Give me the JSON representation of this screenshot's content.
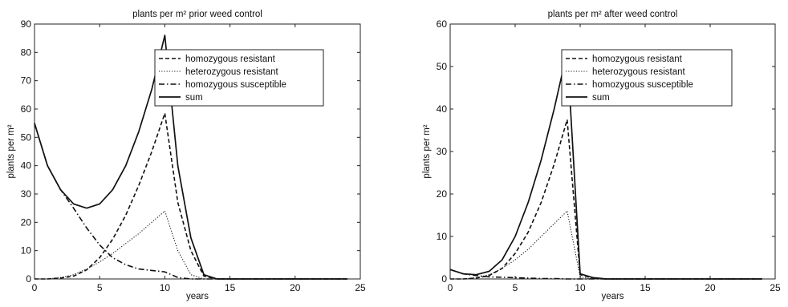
{
  "chart_data": [
    {
      "type": "line",
      "title": "plants per m² prior weed control",
      "xlabel": "years",
      "ylabel": "plants per m²",
      "xlim": [
        0,
        25
      ],
      "ylim": [
        0,
        90
      ],
      "xticks": [
        0,
        5,
        10,
        15,
        20,
        25
      ],
      "yticks": [
        0,
        10,
        20,
        30,
        40,
        50,
        60,
        70,
        80,
        90
      ],
      "grid": false,
      "legend_position": "top-right",
      "series": [
        {
          "name": "homozygous resistant",
          "style": "dashed",
          "x": [
            0,
            1,
            2,
            3,
            4,
            5,
            6,
            7,
            8,
            9,
            10,
            11,
            12,
            13,
            14,
            15,
            16,
            17,
            18,
            19,
            20,
            21,
            22,
            23,
            24
          ],
          "y": [
            0,
            0,
            0.3,
            1,
            3.2,
            7.5,
            14,
            22.5,
            33,
            45,
            58.5,
            27,
            10,
            1,
            0,
            0,
            0,
            0,
            0,
            0,
            0,
            0,
            0,
            0,
            0
          ]
        },
        {
          "name": "heterozygous resistant",
          "style": "dotted",
          "x": [
            0,
            1,
            2,
            3,
            4,
            5,
            6,
            7,
            8,
            9,
            10,
            11,
            12,
            13,
            14,
            15,
            16,
            17,
            18,
            19,
            20,
            21,
            22,
            23,
            24
          ],
          "y": [
            0,
            0,
            0.5,
            1.5,
            3.5,
            6,
            9,
            12.5,
            16,
            20,
            24,
            10,
            1.5,
            0,
            0,
            0,
            0,
            0,
            0,
            0,
            0,
            0,
            0,
            0,
            0
          ]
        },
        {
          "name": "homozygous susceptible",
          "style": "dash-dot",
          "x": [
            0,
            1,
            2,
            3,
            4,
            5,
            6,
            7,
            8,
            9,
            10,
            11,
            12,
            13,
            14,
            15,
            16,
            17,
            18,
            19,
            20,
            21,
            22,
            23,
            24
          ],
          "y": [
            55,
            40,
            31.5,
            25,
            18,
            12,
            7.5,
            5,
            3.5,
            3,
            2.5,
            0.5,
            0,
            0,
            0,
            0,
            0,
            0,
            0,
            0,
            0,
            0,
            0,
            0,
            0
          ]
        },
        {
          "name": "sum",
          "style": "solid",
          "x": [
            0,
            1,
            2,
            3,
            4,
            5,
            6,
            7,
            8,
            9,
            10,
            11,
            12,
            13,
            14,
            15,
            16,
            17,
            18,
            19,
            20,
            21,
            22,
            23,
            24
          ],
          "y": [
            55,
            40,
            31.5,
            26.5,
            25,
            26.5,
            31.5,
            40,
            52,
            67,
            86,
            40,
            14.5,
            1.5,
            0,
            0,
            0,
            0,
            0,
            0,
            0,
            0,
            0,
            0,
            0
          ]
        }
      ]
    },
    {
      "type": "line",
      "title": "plants per m² after weed control",
      "xlabel": "years",
      "ylabel": "plants per m²",
      "xlim": [
        0,
        25
      ],
      "ylim": [
        0,
        60
      ],
      "xticks": [
        0,
        5,
        10,
        15,
        20,
        25
      ],
      "yticks": [
        0,
        10,
        20,
        30,
        40,
        50,
        60
      ],
      "grid": false,
      "legend_position": "top-right",
      "series": [
        {
          "name": "homozygous resistant",
          "style": "dashed",
          "x": [
            0,
            1,
            2,
            3,
            4,
            5,
            6,
            7,
            8,
            9,
            10,
            11,
            12,
            13,
            14,
            15,
            16,
            17,
            18,
            19,
            20,
            21,
            22,
            23,
            24
          ],
          "y": [
            0,
            0,
            0.2,
            0.8,
            2.5,
            6,
            11,
            18,
            27,
            37.5,
            1,
            0.2,
            0,
            0,
            0,
            0,
            0,
            0,
            0,
            0,
            0,
            0,
            0,
            0,
            0
          ]
        },
        {
          "name": "heterozygous resistant",
          "style": "dotted",
          "x": [
            0,
            1,
            2,
            3,
            4,
            5,
            6,
            7,
            8,
            9,
            10,
            11,
            12,
            13,
            14,
            15,
            16,
            17,
            18,
            19,
            20,
            21,
            22,
            23,
            24
          ],
          "y": [
            0,
            0,
            0.3,
            1,
            2.5,
            4.5,
            7,
            10,
            13,
            16,
            0.5,
            0,
            0,
            0,
            0,
            0,
            0,
            0,
            0,
            0,
            0,
            0,
            0,
            0,
            0
          ]
        },
        {
          "name": "homozygous susceptible",
          "style": "dash-dot",
          "x": [
            0,
            1,
            2,
            3,
            4,
            5,
            6,
            7,
            8,
            9,
            10,
            11,
            12,
            13,
            14,
            15,
            16,
            17,
            18,
            19,
            20,
            21,
            22,
            23,
            24
          ],
          "y": [
            2.2,
            1.2,
            0.8,
            0.5,
            0.4,
            0.3,
            0.2,
            0.1,
            0.1,
            0,
            0,
            0,
            0,
            0,
            0,
            0,
            0,
            0,
            0,
            0,
            0,
            0,
            0,
            0,
            0
          ]
        },
        {
          "name": "sum",
          "style": "solid",
          "x": [
            0,
            1,
            2,
            3,
            4,
            5,
            6,
            7,
            8,
            9,
            10,
            11,
            12,
            13,
            14,
            15,
            16,
            17,
            18,
            19,
            20,
            21,
            22,
            23,
            24
          ],
          "y": [
            2.2,
            1.2,
            1,
            1.8,
            4.5,
            10,
            18,
            28,
            40,
            53.5,
            1.2,
            0.3,
            0,
            0,
            0,
            0,
            0,
            0,
            0,
            0,
            0,
            0,
            0,
            0,
            0
          ]
        }
      ]
    }
  ]
}
